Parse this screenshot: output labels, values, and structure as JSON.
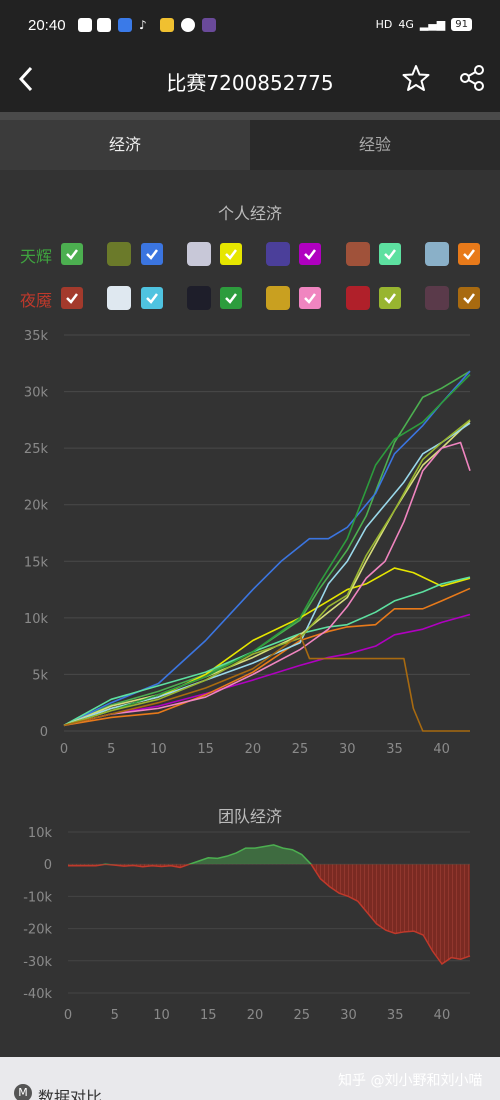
{
  "status": {
    "time": "20:40",
    "network": "4G",
    "signal_label": "HD",
    "battery": "91"
  },
  "header": {
    "title": "比赛7200852775"
  },
  "tabs": [
    {
      "label": "经济",
      "active": true
    },
    {
      "label": "经验",
      "active": false
    }
  ],
  "personal": {
    "title": "个人经济",
    "radiant_label": "天辉",
    "dire_label": "夜魇",
    "radiant_color": "#3fa33f",
    "dire_color": "#c0392b"
  },
  "team": {
    "title": "团队经济"
  },
  "footer": {
    "compare_label": "数据对比",
    "watermark": "知乎 @刘小野和刘小喵"
  },
  "chart_data": [
    {
      "type": "line",
      "title": "个人经济",
      "xlim": [
        0,
        43
      ],
      "ylim": [
        0,
        35000
      ],
      "xticks": [
        0,
        5,
        10,
        15,
        20,
        25,
        30,
        35,
        40
      ],
      "yticks": [
        0,
        5000,
        10000,
        15000,
        20000,
        25000,
        30000,
        35000
      ],
      "ytick_labels": [
        "0",
        "5k",
        "10k",
        "15k",
        "20k",
        "25k",
        "30k",
        "35k"
      ],
      "grid": true,
      "series": [
        {
          "team": "radiant",
          "color": "#4caf50",
          "x": [
            0,
            5,
            10,
            15,
            20,
            25,
            27,
            30,
            32,
            35,
            38,
            40,
            43
          ],
          "y": [
            500,
            2300,
            3500,
            5000,
            7000,
            9800,
            12500,
            16000,
            19000,
            25500,
            29500,
            30300,
            31800
          ]
        },
        {
          "team": "radiant",
          "color": "#3b75e0",
          "x": [
            0,
            5,
            10,
            15,
            20,
            23,
            26,
            28,
            30,
            33,
            35,
            38,
            40,
            43
          ],
          "y": [
            500,
            2500,
            4200,
            8000,
            12500,
            15000,
            17000,
            17000,
            18000,
            21000,
            24500,
            27000,
            29000,
            31800
          ]
        },
        {
          "team": "radiant",
          "color": "#e6e600",
          "x": [
            0,
            5,
            10,
            15,
            20,
            25,
            28,
            30,
            32,
            35,
            37,
            40,
            43
          ],
          "y": [
            500,
            2000,
            3000,
            5000,
            8000,
            10000,
            11500,
            12500,
            13000,
            14400,
            14000,
            12800,
            13500
          ]
        },
        {
          "team": "radiant",
          "color": "#b000c0",
          "x": [
            0,
            5,
            10,
            15,
            20,
            25,
            28,
            30,
            33,
            35,
            38,
            40,
            43
          ],
          "y": [
            500,
            1500,
            2200,
            3300,
            4500,
            5800,
            6500,
            6800,
            7500,
            8500,
            9000,
            9600,
            10300
          ]
        },
        {
          "team": "radiant",
          "color": "#5de0a0",
          "x": [
            0,
            5,
            10,
            15,
            20,
            25,
            28,
            30,
            33,
            35,
            38,
            40,
            43
          ],
          "y": [
            500,
            2800,
            4000,
            5200,
            7000,
            8600,
            9200,
            9400,
            10500,
            11500,
            12300,
            13000,
            13600
          ]
        },
        {
          "team": "radiant",
          "color": "#e87a1a",
          "x": [
            0,
            5,
            10,
            15,
            20,
            25,
            28,
            30,
            33,
            35,
            38,
            40,
            43
          ],
          "y": [
            500,
            1200,
            1600,
            3200,
            5200,
            8000,
            8800,
            9200,
            9400,
            10800,
            10800,
            11500,
            12600
          ]
        },
        {
          "team": "dire",
          "color": "#d7dd7a",
          "x": [
            0,
            5,
            10,
            15,
            20,
            25,
            28,
            30,
            32,
            35,
            38,
            40,
            43
          ],
          "y": [
            500,
            2200,
            3200,
            4800,
            6500,
            8500,
            10500,
            11800,
            15000,
            19500,
            23500,
            25000,
            27400
          ]
        },
        {
          "team": "dire",
          "color": "#9ad8ea",
          "x": [
            0,
            5,
            10,
            15,
            20,
            25,
            28,
            30,
            32,
            34,
            36,
            38,
            40,
            43
          ],
          "y": [
            500,
            2000,
            3000,
            4500,
            6000,
            7800,
            13000,
            15000,
            18000,
            20000,
            22000,
            24500,
            25500,
            27200
          ]
        },
        {
          "team": "dire",
          "color": "#2d9c3d",
          "x": [
            0,
            5,
            10,
            15,
            20,
            25,
            27,
            30,
            33,
            35,
            38,
            40,
            43
          ],
          "y": [
            500,
            1800,
            3200,
            4800,
            7000,
            10000,
            13000,
            17000,
            23500,
            25800,
            27300,
            29000,
            31500
          ]
        },
        {
          "team": "dire",
          "color": "#f085c0",
          "x": [
            0,
            5,
            10,
            15,
            20,
            25,
            28,
            30,
            32,
            34,
            36,
            38,
            40,
            42,
            43
          ],
          "y": [
            500,
            1500,
            2000,
            3000,
            5000,
            7200,
            9000,
            11000,
            13500,
            15000,
            18500,
            23000,
            25000,
            25500,
            23000
          ]
        },
        {
          "team": "dire",
          "color": "#98b530",
          "x": [
            0,
            5,
            10,
            15,
            20,
            25,
            28,
            30,
            32,
            35,
            38,
            40,
            43
          ],
          "y": [
            500,
            1800,
            2800,
            4500,
            6800,
            8200,
            11000,
            12000,
            15500,
            19500,
            24000,
            25500,
            27500
          ]
        },
        {
          "team": "dire",
          "color": "#a86a10",
          "x": [
            0,
            5,
            10,
            15,
            20,
            25,
            26,
            30,
            33,
            36,
            37,
            38,
            40,
            43
          ],
          "y": [
            500,
            1500,
            2500,
            3800,
            5500,
            8500,
            6400,
            6400,
            6400,
            6400,
            2000,
            0,
            0,
            0
          ]
        }
      ]
    },
    {
      "type": "area",
      "title": "团队经济",
      "xlim": [
        0,
        43
      ],
      "ylim": [
        -40000,
        10000
      ],
      "xticks": [
        0,
        5,
        10,
        15,
        20,
        25,
        30,
        35,
        40
      ],
      "yticks": [
        10000,
        0,
        -10000,
        -20000,
        -30000,
        -40000
      ],
      "ytick_labels": [
        "10k",
        "0",
        "-10k",
        "-20k",
        "-30k",
        "-40k"
      ],
      "positive_color": "#4caf50",
      "negative_color": "#c0392b",
      "x": [
        0,
        3,
        4,
        5,
        6,
        7,
        8,
        9,
        10,
        11,
        12,
        13,
        14,
        15,
        16,
        17,
        18,
        19,
        20,
        21,
        22,
        23,
        24,
        25,
        26,
        27,
        28,
        29,
        30,
        31,
        32,
        33,
        34,
        35,
        36,
        37,
        38,
        39,
        40,
        41,
        42,
        43
      ],
      "y": [
        -500,
        -500,
        0,
        -300,
        -600,
        -400,
        -800,
        -500,
        -700,
        -500,
        -1000,
        0,
        1000,
        2000,
        1800,
        2500,
        3500,
        5000,
        5000,
        5500,
        6000,
        5000,
        4500,
        3000,
        0,
        -4500,
        -7000,
        -9000,
        -10000,
        -11500,
        -15000,
        -18500,
        -20500,
        -21500,
        -21000,
        -20800,
        -22000,
        -27000,
        -31000,
        -29000,
        -29500,
        -28500
      ]
    }
  ]
}
